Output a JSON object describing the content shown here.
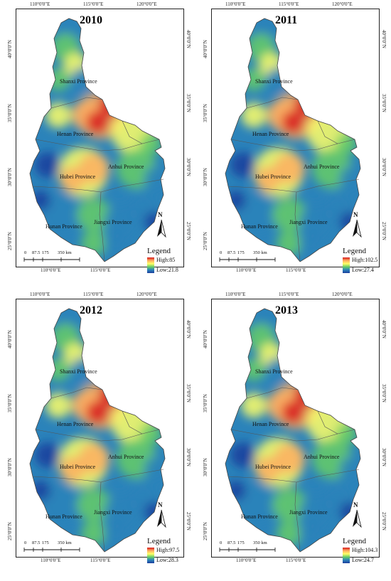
{
  "maps": [
    {
      "year": "2010",
      "legend_title": "Legend",
      "legend_high": "High:85",
      "legend_low": "Low:21.8",
      "top_ticks": [
        "110°0'0\"E",
        "115°0'0\"E",
        "120°0'0\"E"
      ],
      "bottom_ticks": [
        "110°0'0\"E",
        "115°0'0\"E"
      ],
      "left_ticks": [
        "40°0'0\"N",
        "35°0'0\"N",
        "30°0'0\"N",
        "25°0'0\"N"
      ],
      "right_ticks": [
        "40°0'0\"N",
        "35°0'0\"N",
        "30°0'0\"N",
        "25°0'0\"N"
      ]
    },
    {
      "year": "2011",
      "legend_title": "Legend",
      "legend_high": "High:102.5",
      "legend_low": "Low:27.4",
      "top_ticks": [
        "110°0'0\"E",
        "115°0'0\"E",
        "120°0'0\"E"
      ],
      "bottom_ticks": [
        "110°0'0\"E",
        "115°0'0\"E"
      ],
      "left_ticks": [
        "40°0'0\"N",
        "35°0'0\"N",
        "30°0'0\"N",
        "25°0'0\"N"
      ],
      "right_ticks": [
        "40°0'0\"N",
        "35°0'0\"N",
        "30°0'0\"N",
        "25°0'0\"N"
      ]
    },
    {
      "year": "2012",
      "legend_title": "Legend",
      "legend_high": "High:97.5",
      "legend_low": "Low:28.3",
      "top_ticks": [
        "110°0'0\"E",
        "115°0'0\"E",
        "120°0'0\"E"
      ],
      "bottom_ticks": [
        "110°0'0\"E",
        "115°0'0\"E"
      ],
      "left_ticks": [
        "40°0'0\"N",
        "35°0'0\"N",
        "30°0'0\"N",
        "25°0'0\"N"
      ],
      "right_ticks": [
        "40°0'0\"N",
        "35°0'0\"N",
        "30°0'0\"N",
        "25°0'0\"N"
      ]
    },
    {
      "year": "2013",
      "legend_title": "Legend",
      "legend_high": "High:104.3",
      "legend_low": "Low:24.7",
      "top_ticks": [
        "110°0'0\"E",
        "115°0'0\"E",
        "120°0'0\"E"
      ],
      "bottom_ticks": [
        "110°0'0\"E",
        "115°0'0\"E"
      ],
      "left_ticks": [
        "40°0'0\"N",
        "35°0'0\"N",
        "30°0'0\"N",
        "25°0'0\"N"
      ],
      "right_ticks": [
        "40°0'0\"N",
        "35°0'0\"N",
        "30°0'0\"N",
        "25°0'0\"N"
      ]
    }
  ],
  "provinces": {
    "shanxi": "Shanxi Province",
    "henan": "Henan Province",
    "anhui": "Anhui Province",
    "hubei": "Hubei Province",
    "hunan": "Hunan Province",
    "jiangxi": "Jiangxi Province"
  },
  "scale_labels": [
    "0",
    "87.5",
    "175",
    "350 km"
  ],
  "north_label": "N",
  "colors": {
    "high": "#d7191c",
    "mid_high": "#fdae61",
    "mid": "#ffff66",
    "mid_low": "#66cc66",
    "low": "#2b83ba",
    "lowest": "#1a3d9c"
  }
}
